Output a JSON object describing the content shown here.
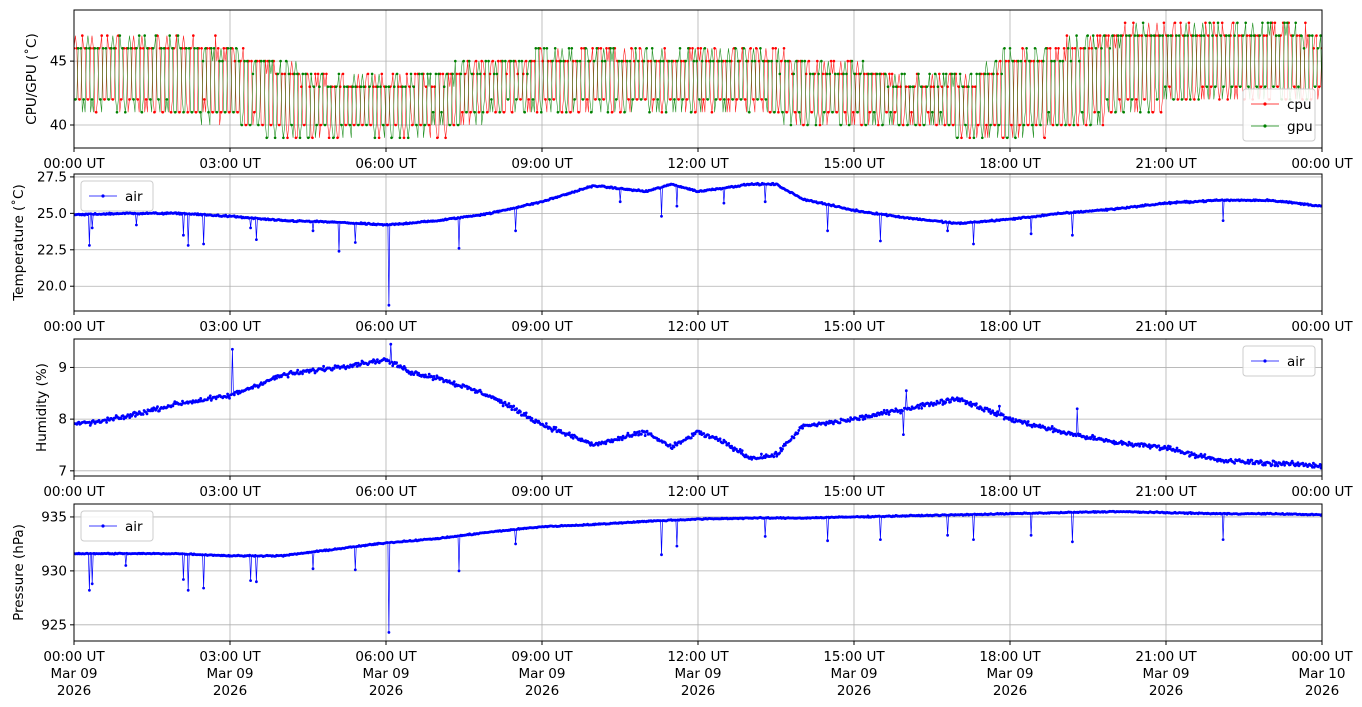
{
  "colors": {
    "cpu": "#ff0000",
    "gpu": "#008000",
    "air": "#0000ff",
    "grid": "#b0b0b0"
  },
  "x_ticks": [
    {
      "t": 0,
      "time": "00:00 UT",
      "date": "Mar 09",
      "year": "2026"
    },
    {
      "t": 3,
      "time": "03:00 UT",
      "date": "Mar 09",
      "year": "2026"
    },
    {
      "t": 6,
      "time": "06:00 UT",
      "date": "Mar 09",
      "year": "2026"
    },
    {
      "t": 9,
      "time": "09:00 UT",
      "date": "Mar 09",
      "year": "2026"
    },
    {
      "t": 12,
      "time": "12:00 UT",
      "date": "Mar 09",
      "year": "2026"
    },
    {
      "t": 15,
      "time": "15:00 UT",
      "date": "Mar 09",
      "year": "2026"
    },
    {
      "t": 18,
      "time": "18:00 UT",
      "date": "Mar 09",
      "year": "2026"
    },
    {
      "t": 21,
      "time": "21:00 UT",
      "date": "Mar 09",
      "year": "2026"
    },
    {
      "t": 24,
      "time": "00:00 UT",
      "date": "Mar 10",
      "year": "2026"
    }
  ],
  "chart_data": [
    {
      "type": "line",
      "ylabel": "CPU/GPU (˚C)",
      "xlim": [
        "2026-03-09 00:00",
        "2026-03-10 00:00"
      ],
      "ylim": [
        38.2,
        49.0
      ],
      "yticks": [
        40,
        45
      ],
      "grid": true,
      "legend": "bottom-right",
      "series": [
        {
          "name": "cpu",
          "color": "#ff0000",
          "x_hours": [
            0,
            1,
            2,
            3,
            4,
            5,
            6,
            7,
            8,
            9,
            10,
            11,
            12,
            13,
            14,
            15,
            16,
            17,
            18,
            19,
            20,
            21,
            22,
            23,
            24
          ],
          "low": [
            41.0,
            41.0,
            40.5,
            40.0,
            39.0,
            39.0,
            39.0,
            39.2,
            40.5,
            41.0,
            41.0,
            41.0,
            41.0,
            41.0,
            40.0,
            39.5,
            39.5,
            39.0,
            39.0,
            39.5,
            40.5,
            41.5,
            42.0,
            42.0,
            42.0
          ],
          "high": [
            47.0,
            47.0,
            47.0,
            46.5,
            45.0,
            44.0,
            44.0,
            44.5,
            45.5,
            46.0,
            46.0,
            46.0,
            46.0,
            46.5,
            45.5,
            45.0,
            44.0,
            44.0,
            46.0,
            46.5,
            47.5,
            48.0,
            48.0,
            48.0,
            47.5
          ]
        },
        {
          "name": "gpu",
          "color": "#008000",
          "x_hours": [
            0,
            1,
            2,
            3,
            4,
            5,
            6,
            7,
            8,
            9,
            10,
            11,
            12,
            13,
            14,
            15,
            16,
            17,
            18,
            19,
            20,
            21,
            22,
            23,
            24
          ],
          "low": [
            41.0,
            41.0,
            40.5,
            40.0,
            39.0,
            39.0,
            39.0,
            39.2,
            40.5,
            41.0,
            41.0,
            41.0,
            41.0,
            41.0,
            40.0,
            39.5,
            39.5,
            39.0,
            39.0,
            39.5,
            40.5,
            41.5,
            42.0,
            42.0,
            42.0
          ],
          "high": [
            47.0,
            47.0,
            47.0,
            46.5,
            45.0,
            44.0,
            44.0,
            44.5,
            45.5,
            46.0,
            46.0,
            46.0,
            46.0,
            46.5,
            45.5,
            45.0,
            44.0,
            44.0,
            46.0,
            46.5,
            47.5,
            48.0,
            48.0,
            48.0,
            47.5
          ]
        }
      ]
    },
    {
      "type": "line",
      "ylabel": "Temperature (˚C)",
      "xlim": [
        "2026-03-09 00:00",
        "2026-03-10 00:00"
      ],
      "ylim": [
        18.3,
        27.7
      ],
      "yticks": [
        20.0,
        22.5,
        25.0,
        27.5
      ],
      "grid": true,
      "legend": "top-left",
      "series": [
        {
          "name": "air",
          "color": "#0000ff",
          "x_hours": [
            0,
            1,
            2,
            3,
            4,
            5,
            6,
            7,
            8,
            9,
            10,
            11,
            11.5,
            12,
            13,
            13.5,
            14,
            15,
            16,
            17,
            18,
            19,
            20,
            21,
            22,
            23,
            24
          ],
          "y": [
            24.9,
            25.0,
            25.0,
            24.8,
            24.5,
            24.4,
            24.2,
            24.5,
            25.0,
            25.8,
            26.9,
            26.5,
            27.0,
            26.5,
            27.0,
            27.0,
            26.0,
            25.2,
            24.7,
            24.3,
            24.6,
            25.0,
            25.3,
            25.7,
            25.9,
            25.9,
            25.5
          ]
        }
      ],
      "dips": [
        [
          0.3,
          22.8
        ],
        [
          0.35,
          24.0
        ],
        [
          1.2,
          24.2
        ],
        [
          2.1,
          23.5
        ],
        [
          2.2,
          22.8
        ],
        [
          2.5,
          22.9
        ],
        [
          3.4,
          24.0
        ],
        [
          3.5,
          23.2
        ],
        [
          4.6,
          23.8
        ],
        [
          5.1,
          22.4
        ],
        [
          5.4,
          23.0
        ],
        [
          6.05,
          18.7
        ],
        [
          7.4,
          22.6
        ],
        [
          8.5,
          23.8
        ],
        [
          10.5,
          25.8
        ],
        [
          11.3,
          24.8
        ],
        [
          11.6,
          25.5
        ],
        [
          12.5,
          25.7
        ],
        [
          13.3,
          25.8
        ],
        [
          14.5,
          23.8
        ],
        [
          15.5,
          23.1
        ],
        [
          16.8,
          23.8
        ],
        [
          17.3,
          22.9
        ],
        [
          18.4,
          23.6
        ],
        [
          19.2,
          23.5
        ],
        [
          22.1,
          24.5
        ]
      ]
    },
    {
      "type": "line",
      "ylabel": "Humidity (%)",
      "xlim": [
        "2026-03-09 00:00",
        "2026-03-10 00:00"
      ],
      "ylim": [
        6.9,
        9.55
      ],
      "yticks": [
        7,
        8,
        9
      ],
      "grid": true,
      "legend": "top-right",
      "series": [
        {
          "name": "air",
          "color": "#0000ff",
          "x_hours": [
            0,
            0.5,
            1,
            2,
            3,
            4,
            5,
            6,
            6.5,
            7,
            8,
            9,
            10,
            11,
            11.5,
            12,
            12.5,
            13,
            13.5,
            14,
            15,
            16,
            17,
            18,
            19,
            20,
            21,
            22,
            23,
            24
          ],
          "y": [
            7.9,
            7.95,
            8.05,
            8.3,
            8.45,
            8.85,
            9.0,
            9.15,
            8.9,
            8.8,
            8.45,
            7.9,
            7.5,
            7.75,
            7.45,
            7.75,
            7.55,
            7.25,
            7.3,
            7.85,
            8.0,
            8.2,
            8.4,
            8.0,
            7.75,
            7.55,
            7.45,
            7.2,
            7.15,
            7.1
          ]
        }
      ]
    },
    {
      "type": "line",
      "ylabel": "Pressure (hPa)",
      "xlim": [
        "2026-03-09 00:00",
        "2026-03-10 00:00"
      ],
      "ylim": [
        923.5,
        936.2
      ],
      "yticks": [
        925,
        930,
        935
      ],
      "grid": true,
      "legend": "top-left",
      "series": [
        {
          "name": "air",
          "color": "#0000ff",
          "x_hours": [
            0,
            1,
            2,
            3,
            4,
            5,
            6,
            7,
            8,
            9,
            10,
            11,
            12,
            13,
            14,
            15,
            16,
            17,
            18,
            19,
            20,
            21,
            22,
            23,
            24
          ],
          "y": [
            931.6,
            931.6,
            931.6,
            931.4,
            931.4,
            932.0,
            932.6,
            933.0,
            933.6,
            934.1,
            934.3,
            934.6,
            934.8,
            934.9,
            934.9,
            935.0,
            935.1,
            935.2,
            935.3,
            935.4,
            935.5,
            935.4,
            935.3,
            935.3,
            935.2
          ]
        }
      ],
      "dips": [
        [
          0.3,
          928.2
        ],
        [
          0.35,
          928.8
        ],
        [
          1.0,
          930.5
        ],
        [
          2.1,
          929.2
        ],
        [
          2.2,
          928.2
        ],
        [
          2.5,
          928.4
        ],
        [
          3.4,
          929.1
        ],
        [
          3.5,
          929.0
        ],
        [
          4.6,
          930.2
        ],
        [
          5.4,
          930.1
        ],
        [
          6.05,
          924.3
        ],
        [
          7.4,
          930.0
        ],
        [
          8.5,
          932.5
        ],
        [
          11.3,
          931.5
        ],
        [
          11.6,
          932.3
        ],
        [
          13.3,
          933.2
        ],
        [
          14.5,
          932.8
        ],
        [
          15.5,
          932.9
        ],
        [
          16.8,
          933.3
        ],
        [
          17.3,
          932.9
        ],
        [
          18.4,
          933.3
        ],
        [
          19.2,
          932.7
        ],
        [
          22.1,
          932.9
        ]
      ]
    }
  ]
}
